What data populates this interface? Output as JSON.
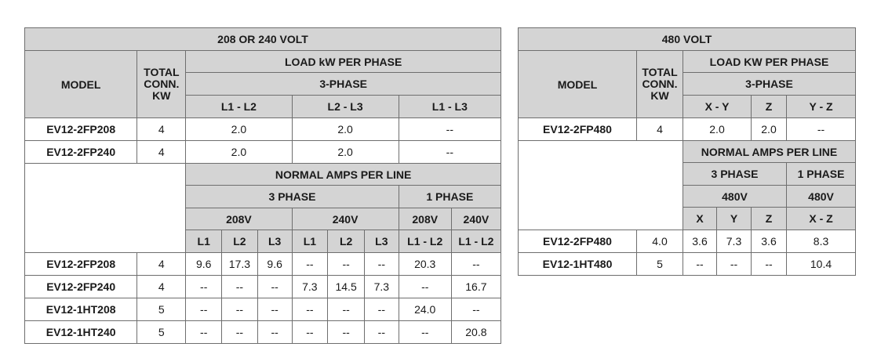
{
  "left_table": {
    "title": "208 OR 240 VOLT",
    "col_model": "MODEL",
    "col_total": [
      "TOTAL",
      "CONN.",
      "KW"
    ],
    "load_header": "LOAD kW PER PHASE",
    "three_phase": "3-PHASE",
    "phase_cols": [
      "L1 - L2",
      "L2 - L3",
      "L1 - L3"
    ],
    "load_rows": [
      {
        "model": "EV12-2FP208",
        "total": "4",
        "l1l2": "2.0",
        "l2l3": "2.0",
        "l1l3": "--"
      },
      {
        "model": "EV12-2FP240",
        "total": "4",
        "l1l2": "2.0",
        "l2l3": "2.0",
        "l1l3": "--"
      }
    ],
    "amps_header": "NORMAL AMPS PER LINE",
    "three_phase_label": "3 PHASE",
    "one_phase_label": "1 PHASE",
    "v208": "208V",
    "v240": "240V",
    "line_cols": [
      "L1",
      "L2",
      "L3",
      "L1",
      "L2",
      "L3",
      "L1 - L2",
      "L1 - L2"
    ],
    "amps_rows": [
      {
        "model": "EV12-2FP208",
        "total": "4",
        "vals": [
          "9.6",
          "17.3",
          "9.6",
          "--",
          "--",
          "--",
          "20.3",
          "--"
        ]
      },
      {
        "model": "EV12-2FP240",
        "total": "4",
        "vals": [
          "--",
          "--",
          "--",
          "7.3",
          "14.5",
          "7.3",
          "--",
          "16.7"
        ]
      },
      {
        "model": "EV12-1HT208",
        "total": "5",
        "vals": [
          "--",
          "--",
          "--",
          "--",
          "--",
          "--",
          "24.0",
          "--"
        ]
      },
      {
        "model": "EV12-1HT240",
        "total": "5",
        "vals": [
          "--",
          "--",
          "--",
          "--",
          "--",
          "--",
          "--",
          "20.8"
        ]
      }
    ]
  },
  "right_table": {
    "title": "480 VOLT",
    "col_model": "MODEL",
    "col_total": [
      "TOTAL",
      "CONN.",
      "KW"
    ],
    "load_header": "LOAD KW PER PHASE",
    "three_phase": "3-PHASE",
    "phase_cols": [
      "X - Y",
      "Z",
      "Y - Z"
    ],
    "load_row": {
      "model": "EV12-2FP480",
      "total": "4",
      "xy": "2.0",
      "z": "2.0",
      "yz": "--"
    },
    "amps_header": "NORMAL AMPS PER LINE",
    "three_phase_label": "3 PHASE",
    "one_phase_label": "1 PHASE",
    "v480_a": "480V",
    "v480_b": "480V",
    "line_cols": [
      "X",
      "Y",
      "Z",
      "X - Z"
    ],
    "amps_rows": [
      {
        "model": "EV12-2FP480",
        "total": "4.0",
        "vals": [
          "3.6",
          "7.3",
          "3.6",
          "8.3"
        ]
      },
      {
        "model": "EV12-1HT480",
        "total": "5",
        "vals": [
          "--",
          "--",
          "--",
          "10.4"
        ]
      }
    ]
  }
}
